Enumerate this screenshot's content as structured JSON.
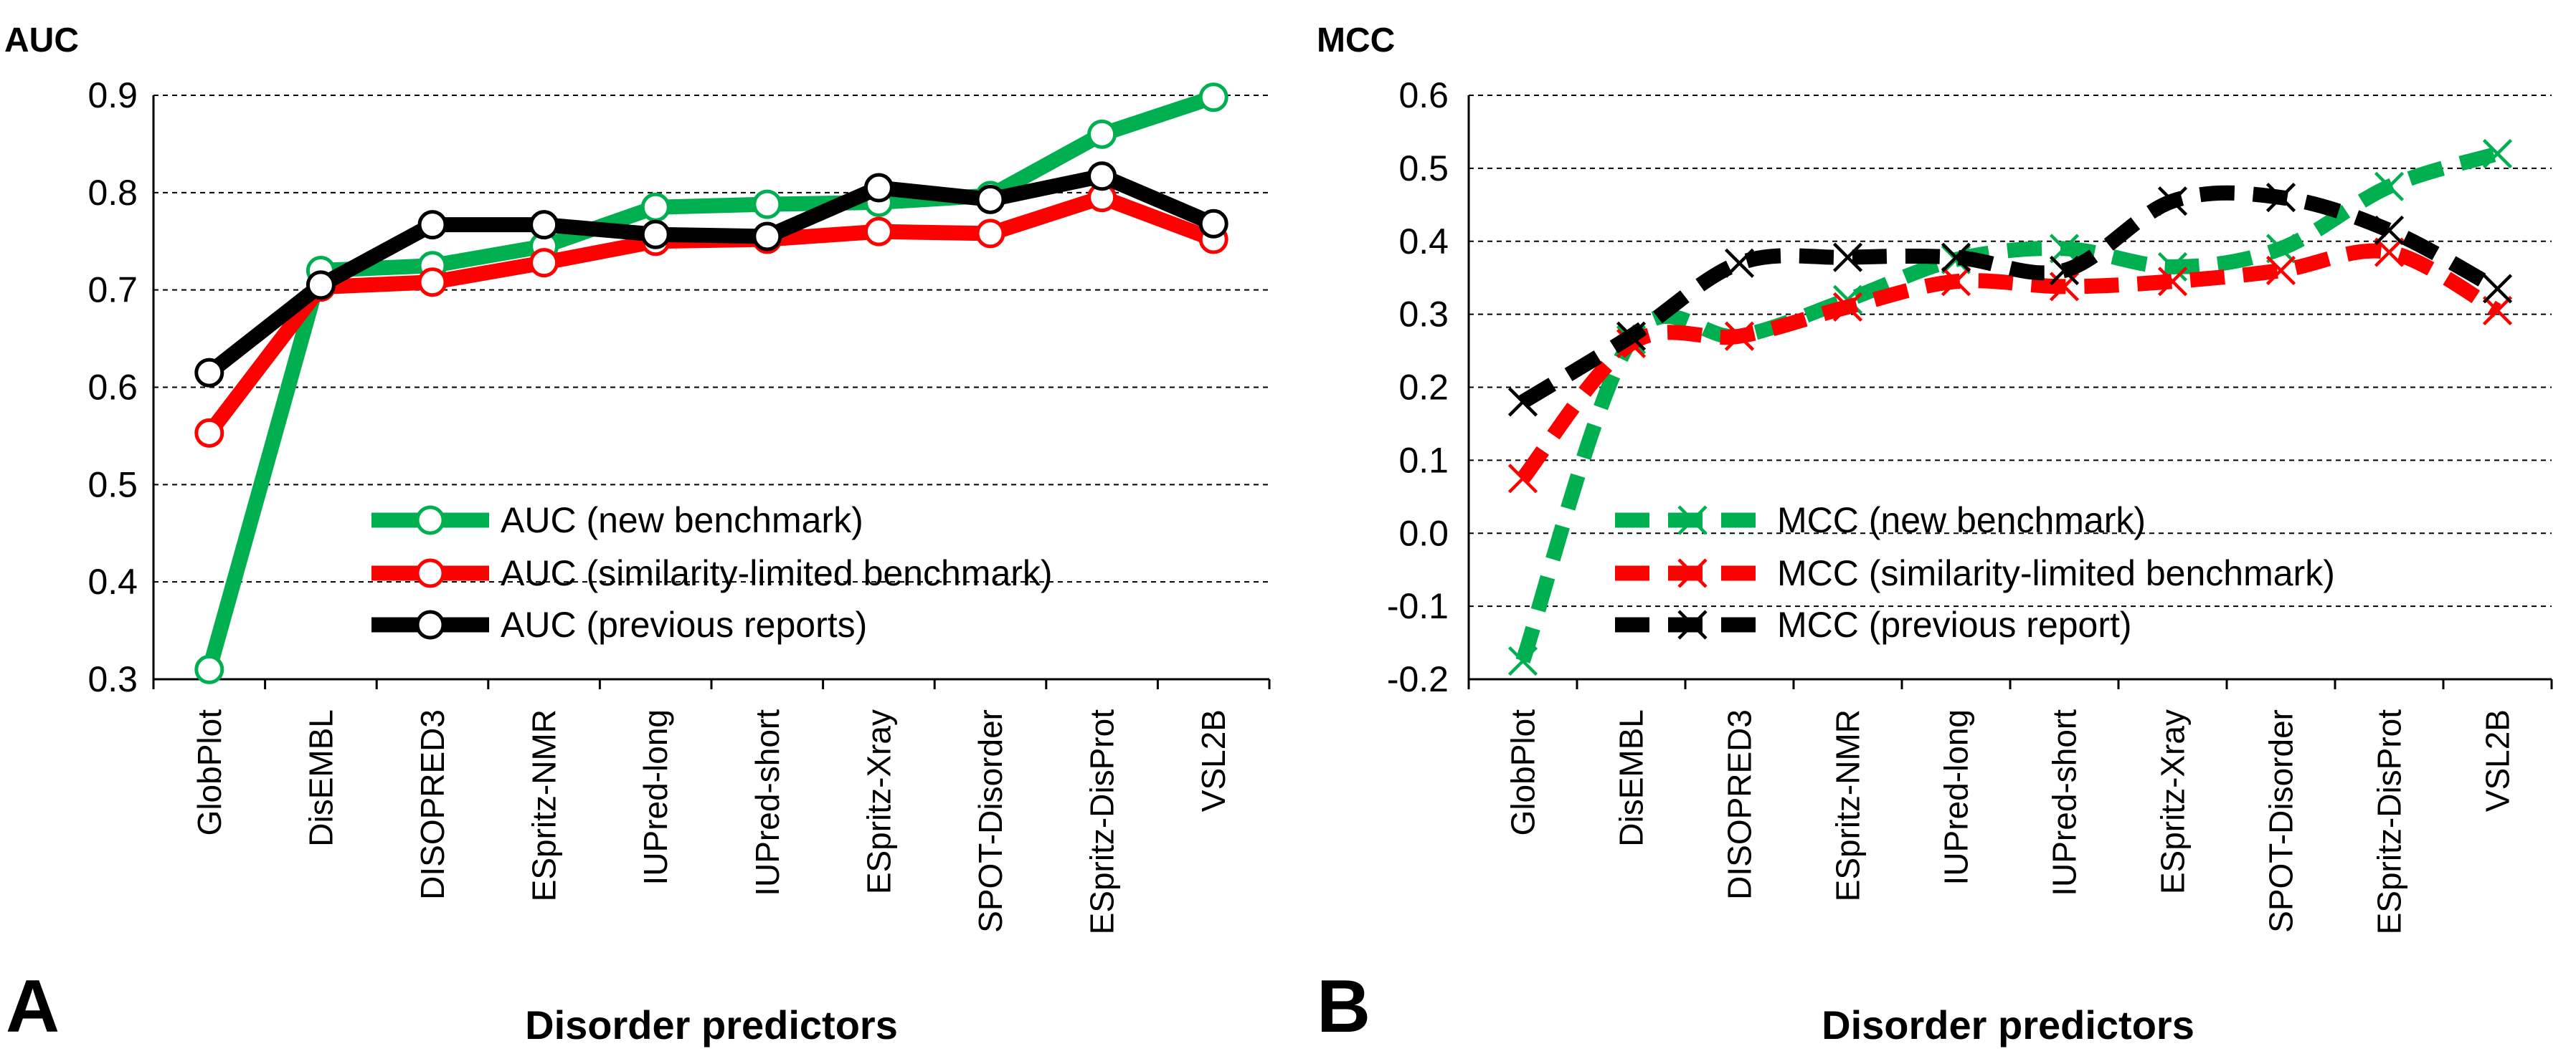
{
  "chart_data": [
    {
      "type": "line",
      "panel_label": "A",
      "title": "AUC",
      "xlabel": "Disorder predictors",
      "ylabel": "AUC",
      "ylim": [
        0.3,
        0.9
      ],
      "ytick_labels": [
        "0.3",
        "0.4",
        "0.5",
        "0.6",
        "0.7",
        "0.8",
        "0.9"
      ],
      "grid": "horizontal dashed",
      "legend_position": "center-right",
      "categories": [
        "GlobPlot",
        "DisEMBL",
        "DISOPRED3",
        "ESpritz-NMR",
        "IUPred-long",
        "IUPred-short",
        "ESpritz-Xray",
        "SPOT-Disorder",
        "ESpritz-DisProt",
        "VSL2B"
      ],
      "series": [
        {
          "name": "AUC (new benchmark)",
          "color": "#00b050",
          "marker": "circle",
          "line": "solid",
          "values": [
            0.31,
            0.72,
            0.725,
            0.745,
            0.785,
            0.788,
            0.79,
            0.797,
            0.86,
            0.898
          ]
        },
        {
          "name": "AUC (similarity-limited benchmark)",
          "color": "#ff0000",
          "marker": "circle",
          "line": "solid",
          "values": [
            0.553,
            0.703,
            0.708,
            0.728,
            0.75,
            0.752,
            0.76,
            0.758,
            0.795,
            0.752
          ]
        },
        {
          "name": "AUC (previous reports)",
          "color": "#000000",
          "marker": "circle",
          "line": "solid",
          "values": [
            0.615,
            0.705,
            0.767,
            0.767,
            0.757,
            0.755,
            0.805,
            0.793,
            0.817,
            0.768
          ]
        }
      ]
    },
    {
      "type": "line",
      "panel_label": "B",
      "title": "MCC",
      "xlabel": "Disorder predictors",
      "ylabel": "MCC",
      "ylim": [
        -0.2,
        0.6
      ],
      "ytick_labels": [
        "-0.2",
        "-0.1",
        "0.0",
        "0.1",
        "0.2",
        "0.3",
        "0.4",
        "0.5",
        "0.6"
      ],
      "grid": "horizontal dashed",
      "legend_position": "center-right",
      "categories": [
        "GlobPlot",
        "DisEMBL",
        "DISOPRED3",
        "ESpritz-NMR",
        "IUPred-long",
        "IUPred-short",
        "ESpritz-Xray",
        "SPOT-Disorder",
        "ESpritz-DisProt",
        "VSL2B"
      ],
      "series": [
        {
          "name": "MCC (new benchmark)",
          "color": "#00b050",
          "marker": "x",
          "line": "dashed",
          "values": [
            -0.175,
            0.265,
            0.27,
            0.32,
            0.375,
            0.39,
            0.365,
            0.39,
            0.475,
            0.52
          ]
        },
        {
          "name": "MCC (similarity-limited benchmark)",
          "color": "#ff0000",
          "marker": "x",
          "line": "dashed",
          "values": [
            0.075,
            0.26,
            0.27,
            0.31,
            0.345,
            0.338,
            0.345,
            0.36,
            0.385,
            0.305
          ]
        },
        {
          "name": "MCC (previous report)",
          "color": "#000000",
          "marker": "x",
          "line": "dashed",
          "values": [
            0.18,
            0.27,
            0.37,
            0.378,
            0.378,
            0.36,
            0.455,
            0.46,
            0.415,
            0.335
          ]
        }
      ]
    }
  ]
}
